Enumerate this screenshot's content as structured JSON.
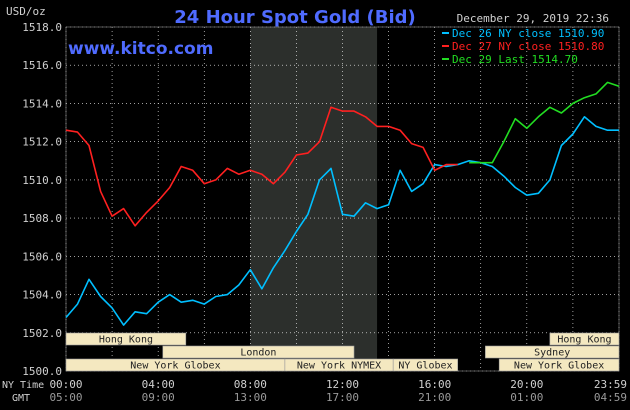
{
  "chart_data": {
    "type": "line",
    "title": "24 Hour Spot Gold (Bid)",
    "website": "www.kitco.com",
    "timestamp": "December 29, 2019 22:36",
    "ylabel": "USD/oz",
    "ylim": [
      1500.0,
      1518.0
    ],
    "y_ticks": [
      "1500.0",
      "1502.0",
      "1504.0",
      "1506.0",
      "1508.0",
      "1510.0",
      "1512.0",
      "1514.0",
      "1516.0",
      "1518.0"
    ],
    "xlim": [
      0,
      24
    ],
    "x_ticks_ny": [
      "00:00",
      "04:00",
      "08:00",
      "12:00",
      "16:00",
      "20:00",
      "23:59"
    ],
    "x_ticks_gmt": [
      "05:00",
      "09:00",
      "13:00",
      "17:00",
      "21:00",
      "01:00",
      "04:59"
    ],
    "x_row_labels": {
      "ny": "NY Time",
      "gmt": "GMT"
    },
    "grid": true,
    "legend_placement": "top-right",
    "shaded_interval": [
      8,
      13.5
    ],
    "series": [
      {
        "name": "Dec 26 NY close 1510.90",
        "color": "#00bfff",
        "x": [
          0,
          0.5,
          1,
          1.5,
          2,
          2.5,
          3,
          3.5,
          4,
          4.5,
          5,
          5.5,
          6,
          6.5,
          7,
          7.5,
          8,
          8.5,
          9,
          9.5,
          10,
          10.5,
          11,
          11.5,
          12,
          12.5,
          13,
          13.5,
          14,
          14.5,
          15,
          15.5,
          16,
          16.5,
          17,
          17.5,
          18,
          18.5,
          19,
          19.5,
          20,
          20.5,
          21,
          21.5,
          22,
          22.5,
          23,
          23.5,
          24
        ],
        "values": [
          1502.8,
          1503.5,
          1504.8,
          1503.9,
          1503.3,
          1502.4,
          1503.1,
          1503.0,
          1503.6,
          1504.0,
          1503.6,
          1503.7,
          1503.5,
          1503.9,
          1504.0,
          1504.5,
          1505.3,
          1504.3,
          1505.4,
          1506.3,
          1507.3,
          1508.2,
          1510.0,
          1510.6,
          1508.2,
          1508.1,
          1508.8,
          1508.5,
          1508.7,
          1510.5,
          1509.4,
          1509.8,
          1510.8,
          1510.7,
          1510.8,
          1511.0,
          1510.9,
          1510.7,
          1510.2,
          1509.6,
          1509.2,
          1509.3,
          1510.0,
          1511.8,
          1512.4,
          1513.3,
          1512.8,
          1512.6,
          1512.6
        ]
      },
      {
        "name": "Dec 27 NY close 1510.80",
        "color": "#ff2020",
        "x": [
          0,
          0.5,
          1,
          1.5,
          2,
          2.5,
          3,
          3.5,
          4,
          4.5,
          5,
          5.5,
          6,
          6.5,
          7,
          7.5,
          8,
          8.5,
          9,
          9.5,
          10,
          10.5,
          11,
          11.5,
          12,
          12.5,
          13,
          13.5,
          14,
          14.5,
          15,
          15.5,
          16,
          16.5,
          17
        ],
        "values": [
          1512.6,
          1512.5,
          1511.8,
          1509.4,
          1508.1,
          1508.5,
          1507.6,
          1508.3,
          1508.9,
          1509.6,
          1510.7,
          1510.5,
          1509.8,
          1510.0,
          1510.6,
          1510.3,
          1510.5,
          1510.3,
          1509.8,
          1510.4,
          1511.3,
          1511.4,
          1512.0,
          1513.8,
          1513.6,
          1513.6,
          1513.3,
          1512.8,
          1512.8,
          1512.6,
          1511.9,
          1511.7,
          1510.5,
          1510.8,
          1510.8
        ]
      },
      {
        "name": "Dec 29 Last 1514.70",
        "color": "#22dd22",
        "x": [
          17.5,
          18,
          18.5,
          19,
          19.5,
          20,
          20.5,
          21,
          21.5,
          22,
          22.5,
          23,
          23.5,
          24
        ],
        "values": [
          1510.9,
          1510.9,
          1510.9,
          1512.0,
          1513.2,
          1512.7,
          1513.3,
          1513.8,
          1513.5,
          1514.0,
          1514.3,
          1514.5,
          1515.1,
          1514.9
        ]
      }
    ],
    "sessions": [
      {
        "label": "Hong Kong",
        "start": 0,
        "end": 5.2
      },
      {
        "label": "London",
        "start": 4.2,
        "end": 12.5
      },
      {
        "label": "New York Globex",
        "start": 0,
        "end": 9.5
      },
      {
        "label": "New York NYMEX",
        "start": 9.5,
        "end": 14.2
      },
      {
        "label": "NY Globex",
        "start": 14.2,
        "end": 17
      },
      {
        "label": "Hong Kong",
        "start": 21,
        "end": 24
      },
      {
        "label": "Sydney",
        "start": 18.2,
        "end": 24
      },
      {
        "label": "New York Globex",
        "start": 18.8,
        "end": 24
      }
    ]
  },
  "colors": {
    "background": "#000000",
    "grid": "#ffffff",
    "title": "#4f6bff",
    "website": "#4f6bff",
    "text": "#d0d0d0",
    "session_fill": "#f4e8c0",
    "session_text": "#222222",
    "shade": "#2c2f2c"
  }
}
